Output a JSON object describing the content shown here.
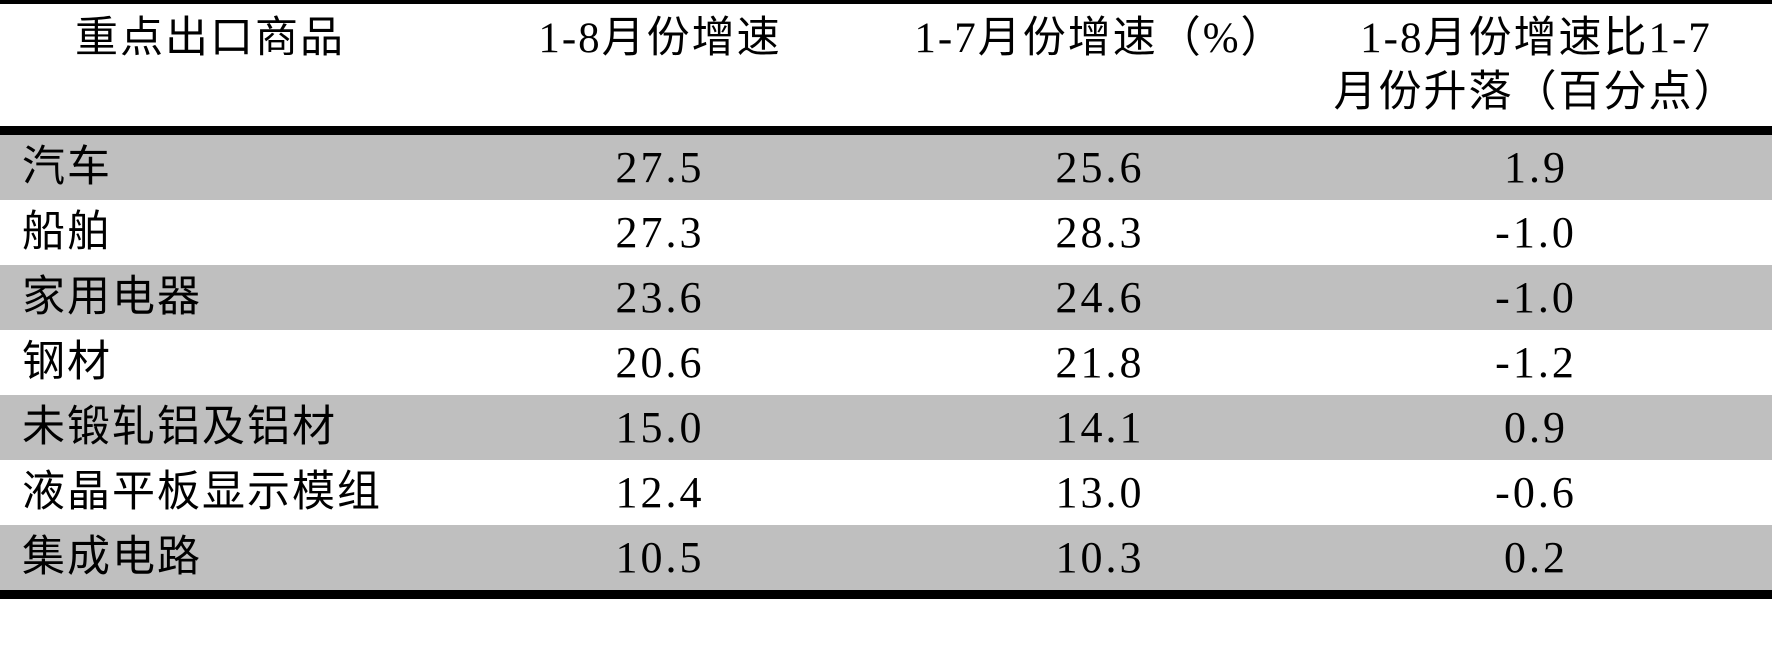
{
  "colors": {
    "background": "#ffffff",
    "text": "#000000",
    "row_shading": "#bfbfbf",
    "rule": "#000000"
  },
  "chart_data": {
    "type": "table",
    "columns": [
      "重点出口商品",
      "1-8月份增速",
      "1-7月份增速（%）",
      "1-8月份增速比1-7月份升落（百分点）"
    ],
    "col4_display_lines": [
      "1-8月份增速比1-7",
      "月份升落（百分点）"
    ],
    "rows": [
      {
        "commodity": "汽车",
        "growth_1_8": "27.5",
        "growth_1_7": "25.6",
        "change": "1.9"
      },
      {
        "commodity": "船舶",
        "growth_1_8": "27.3",
        "growth_1_7": "28.3",
        "change": "-1.0"
      },
      {
        "commodity": "家用电器",
        "growth_1_8": "23.6",
        "growth_1_7": "24.6",
        "change": "-1.0"
      },
      {
        "commodity": "钢材",
        "growth_1_8": "20.6",
        "growth_1_7": "21.8",
        "change": "-1.2"
      },
      {
        "commodity": "未锻轧铝及铝材",
        "growth_1_8": "15.0",
        "growth_1_7": "14.1",
        "change": "0.9"
      },
      {
        "commodity": "液晶平板显示模组",
        "growth_1_8": "12.4",
        "growth_1_7": "13.0",
        "change": "-0.6"
      },
      {
        "commodity": "集成电路",
        "growth_1_8": "10.5",
        "growth_1_7": "10.3",
        "change": "0.2"
      }
    ],
    "layout": {
      "row_shading_alternate": "odd rows shaded gray, even rows white",
      "header_rule": "thick black rule below header and at table bottom, thin rule at top",
      "grid": "no vertical column lines"
    }
  }
}
